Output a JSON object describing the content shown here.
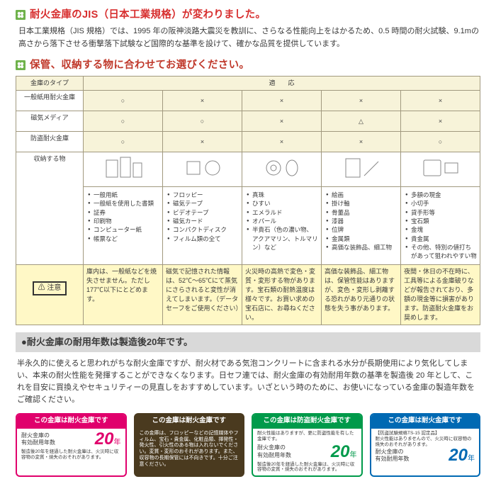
{
  "colors": {
    "heading1": "#d72e2e",
    "heading2": "#c0392b",
    "cloverFill": "#6fb24b",
    "cloverPetal": "#ffffff",
    "tableBorder": "#a1997f",
    "headBg": "#f7f3d9",
    "cautionBg": "#fff8c6",
    "barBg": "#d9d9d9",
    "label1": "#e0006c",
    "label2": "#4a3a1f",
    "label3": "#009a4a",
    "label4": "#0069b3"
  },
  "section1": {
    "title": "耐火金庫のJIS（日本工業規格）が変わりました。",
    "sub": "日本工業規格（JIS 規格）では、1995 年の阪神淡路大震災を教訓に、さらなる性能向上をはかるため、0.5 時間の耐火試験、9.1mの高さから落下させる衝撃落下試験など国際的な基準を設けて、確かな品質を提供しています。"
  },
  "section2": {
    "title": "保管、収納する物に合わせてお選びください。",
    "table": {
      "header": {
        "typeCol": "金庫のタイプ",
        "span": "適　　応"
      },
      "rows_type": [
        "一般紙用耐火金庫",
        "磁気メディア",
        "防盗耐火金庫"
      ],
      "marks": [
        [
          "○",
          "×",
          "×",
          "×",
          "×"
        ],
        [
          "○",
          "○",
          "×",
          "△",
          "×"
        ],
        [
          "○",
          "×",
          "×",
          "×",
          "○"
        ]
      ],
      "storage_label": "収納する物",
      "storage_cols": [
        [
          "一般用紙",
          "一般紙を使用した書類",
          "証券",
          "印刷物",
          "コンピューター紙",
          "帳票など"
        ],
        [
          "フロッピー",
          "磁気テープ",
          "ビデオテープ",
          "磁気カード",
          "コンパクトディスク",
          "フィルム類の全て"
        ],
        [
          "真珠",
          "ひすい",
          "エメラルド",
          "オパール",
          "半貴石（色の濃い物、アクアマリン、トルマリン）など"
        ],
        [
          "絵画",
          "掛け軸",
          "骨董品",
          "漆器",
          "位牌",
          "金属類",
          "高価な装飾品、細工物"
        ],
        [
          "多額の現金",
          "小切手",
          "貸手形等",
          "宝石類",
          "金塊",
          "貴金属",
          "その他、特別の値打ちがあって狙われやすい物"
        ]
      ],
      "caution_label": "注意",
      "caution_cols": [
        "庫内は、一般紙などを焼失させません。ただし 177℃以下にとどめます。",
        "磁気で記憶された情報は、52℃～65℃にて蒸気にさらされると変性が消えてしまいます。（データセーフをご使用ください）",
        "火災時の高熱で変色・変質・変形する物があります。宝石類の耐熱温度は様々です。お買い求めの宝石店に、お尋ねください。",
        "高価な装飾品、細工物は、保管性能はありますが、変色・変形し剥離する恐れがあり元通りの状態を失う事があります。",
        "夜間・休日の不在時に、工具等による金庫破りなどが報告されており、多額の現金等に損害があります。防盗耐火金庫をお奨めします。"
      ]
    }
  },
  "section3": {
    "bar": "●耐火金庫の耐用年数は製造後20年です。",
    "body": "半永久的に使えると思われがちな耐火金庫ですが、耐火材である気泡コンクリートに含まれる水分が長期使用により気化してしまい、本来の耐火性能を発揮することができなくなります。日セフ連では、耐火金庫の有効耐用年数の基準を製造後 20 年として、これを目安に買換えやセキュリティーの見直しをおすすめしています。いざという時のために、お使いになっている金庫の製造年数をご確認ください。"
  },
  "labels": [
    {
      "head": "この金庫は耐火金庫です",
      "left": "耐火金庫の\n有効耐用年数",
      "years": "20",
      "yearsUnit": "年",
      "foot": "製造後20年を経過した耐火金庫は、火災時に収容物の変質・焼失のおそれがあります。",
      "brand": "日セフ連"
    },
    {
      "head": "この金庫は耐火金庫です",
      "body2": "この金庫は、フロッピーなどの記憶媒体やフィルム、宝石・貴金属、化粧品類、揮発性・発火性、引火性のある物は入れないでください。変質・変形のおそれがあります。また、収容物の長期保管には不向きです。十分ご注意ください。",
      "brand": "日セフ連"
    },
    {
      "head": "この金庫は防盗耐火金庫です",
      "left": "耐火金庫の\n有効耐用年数",
      "years": "20",
      "yearsUnit": "年",
      "foot": "製造後20年を経過した耐火金庫は、火災時に収容物の変質・焼失のおそれがあります。",
      "extra": "耐火性能はありますが、更に防盗性能を有した金庫です。",
      "brand": "日セフ連"
    },
    {
      "head": "この金庫は耐火金庫です",
      "left": "耐火金庫の\n有効耐用年数",
      "years": "20",
      "yearsUnit": "年",
      "foot": "製造後20年を経過した耐火金庫は、火災時に収容物の変焼失のおそれがあります。",
      "extra": "【防盗試験規格TS-15 認定品】\n耐火性能はありませんので、火災時に収容物の焼失のおそれがあります。",
      "brand": "日セフ連"
    }
  ]
}
